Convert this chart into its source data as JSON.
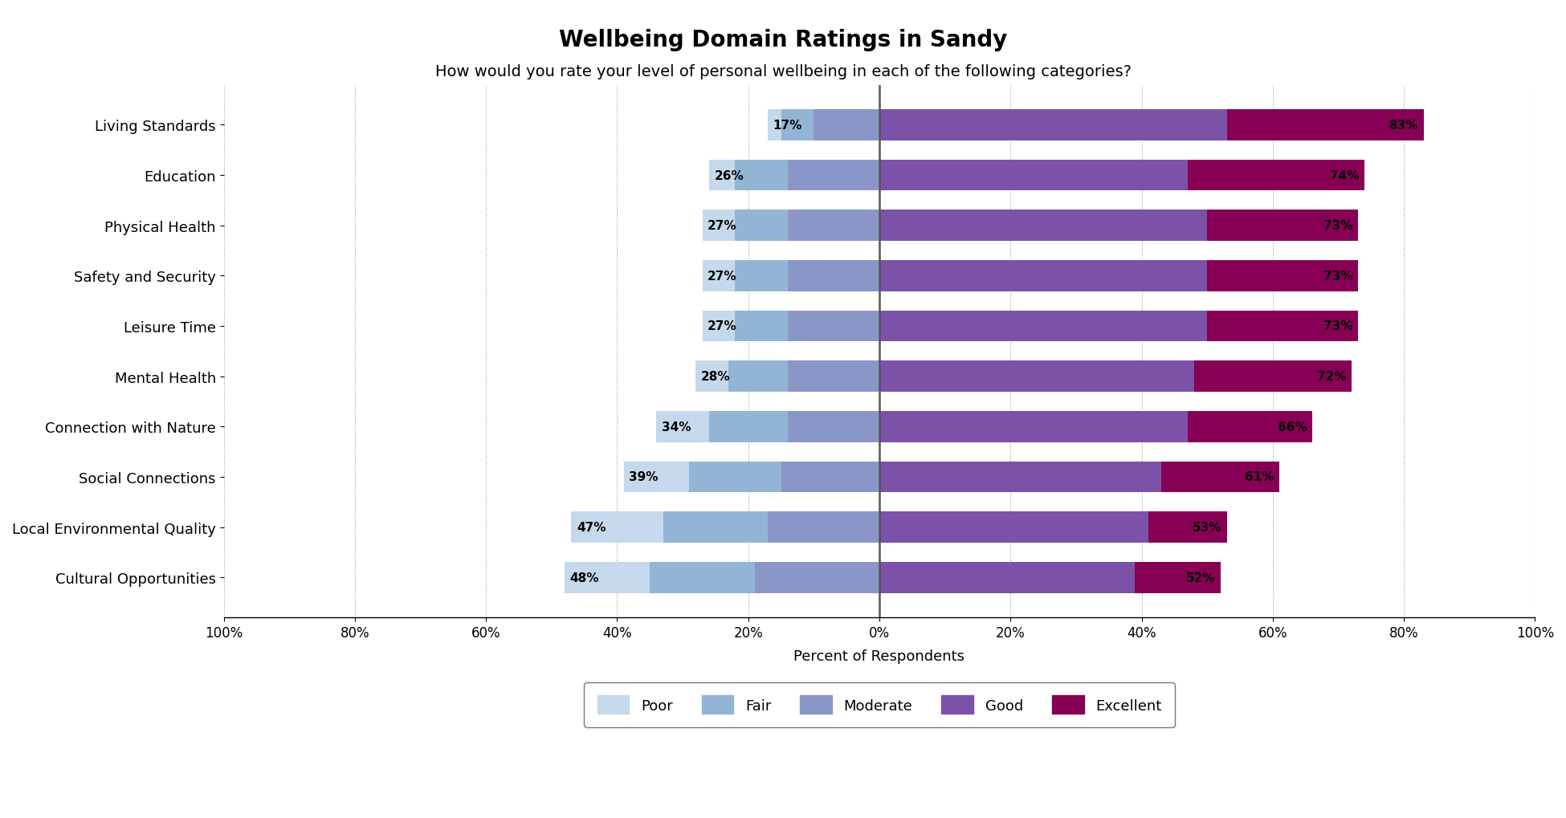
{
  "title": "Wellbeing Domain Ratings in Sandy",
  "subtitle": "How would you rate your level of personal wellbeing in each of the following categories?",
  "xlabel": "Percent of Respondents",
  "categories": [
    "Cultural Opportunities",
    "Local Environmental Quality",
    "Social Connections",
    "Connection with Nature",
    "Mental Health",
    "Leisure Time",
    "Safety and Security",
    "Physical Health",
    "Education",
    "Living Standards"
  ],
  "segments": {
    "Poor": [
      13,
      14,
      10,
      8,
      5,
      5,
      5,
      5,
      4,
      2
    ],
    "Fair": [
      16,
      16,
      14,
      12,
      9,
      8,
      8,
      8,
      8,
      5
    ],
    "Moderate": [
      19,
      17,
      15,
      14,
      14,
      14,
      14,
      14,
      14,
      10
    ],
    "Good": [
      39,
      41,
      43,
      47,
      48,
      50,
      50,
      50,
      47,
      53
    ],
    "Excellent": [
      13,
      12,
      18,
      19,
      24,
      23,
      23,
      23,
      27,
      30
    ]
  },
  "left_pct": [
    48,
    47,
    39,
    34,
    28,
    27,
    27,
    27,
    26,
    17
  ],
  "right_pct": [
    52,
    53,
    61,
    66,
    72,
    73,
    73,
    73,
    74,
    83
  ],
  "colors": {
    "Poor": "#c5d8ec",
    "Fair": "#93b5d5",
    "Moderate": "#8b96c8",
    "Good": "#7b52a8",
    "Excellent": "#870055"
  },
  "xlim": [
    -100,
    100
  ],
  "xticks": [
    -100,
    -80,
    -60,
    -40,
    -20,
    0,
    20,
    40,
    60,
    80,
    100
  ],
  "xticklabels": [
    "100%",
    "80%",
    "60%",
    "40%",
    "20%",
    "0%",
    "20%",
    "40%",
    "60%",
    "80%",
    "100%"
  ],
  "title_fontsize": 20,
  "subtitle_fontsize": 14,
  "axis_label_fontsize": 13,
  "tick_fontsize": 12,
  "legend_fontsize": 13,
  "bar_label_fontsize": 11,
  "bar_height": 0.62
}
